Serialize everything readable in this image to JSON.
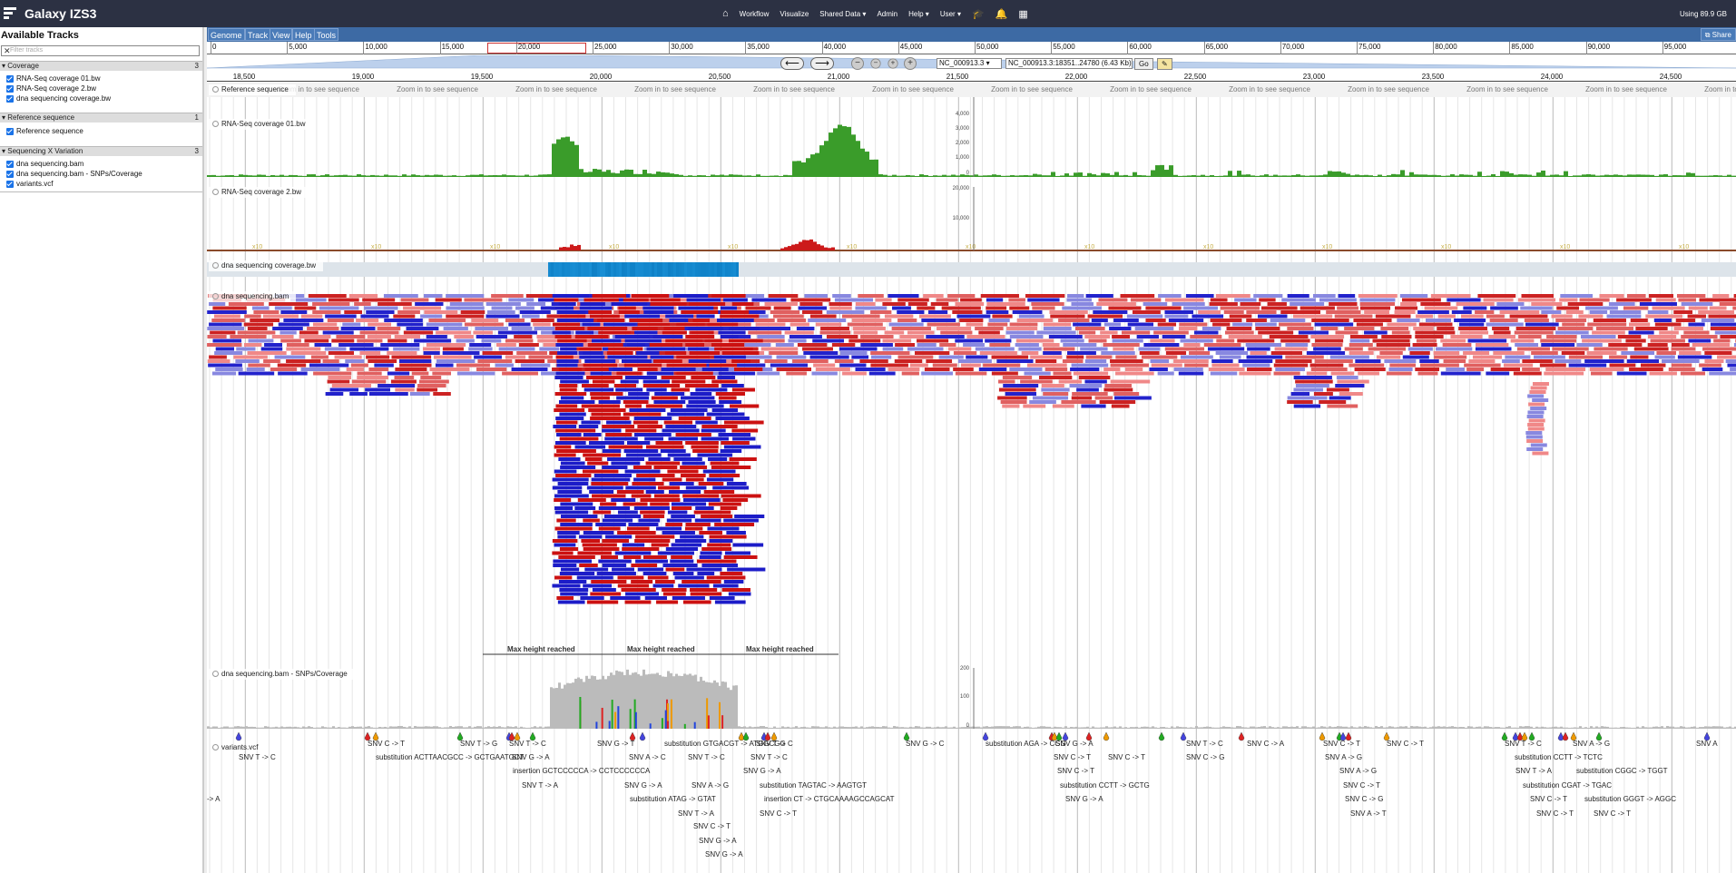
{
  "app": {
    "brand": "Galaxy IZS3",
    "nav": [
      "Workflow",
      "Visualize",
      "Shared Data ▾",
      "Admin",
      "Help ▾",
      "User ▾"
    ],
    "usage": "Using 89.9 GB",
    "icons": [
      "home-icon",
      "graduation-cap-icon",
      "bell-icon",
      "grid-apps-icon"
    ]
  },
  "left_panel": {
    "title": "Available Tracks",
    "filter_placeholder": "Filter tracks",
    "categories": [
      {
        "name": "Coverage",
        "count": "3",
        "tracks": [
          "RNA-Seq coverage 01.bw",
          "RNA-Seq coverage 2.bw",
          "dna sequencing coverage.bw"
        ]
      },
      {
        "name": "Reference sequence",
        "count": "1",
        "tracks": [
          "Reference sequence"
        ]
      },
      {
        "name": "Sequencing X Variation",
        "count": "3",
        "tracks": [
          "dna sequencing.bam",
          "dna sequencing.bam - SNPs/Coverage",
          "variants.vcf"
        ]
      }
    ]
  },
  "menubar": {
    "items": [
      "Genome",
      "Track",
      "View",
      "Help",
      "Tools"
    ],
    "share": "Share"
  },
  "overview": {
    "ticks": [
      "0",
      "5,000",
      "10,000",
      "15,000",
      "20,000",
      "25,000",
      "30,000",
      "35,000",
      "40,000",
      "45,000",
      "50,000",
      "55,000",
      "60,000",
      "65,000",
      "70,000",
      "75,000",
      "80,000",
      "85,000",
      "90,000",
      "95,000"
    ]
  },
  "navigation": {
    "ref_select": "NC_000913.3",
    "location": "NC_000913.3:18351..24780 (6.43 Kb)",
    "go_label": "Go"
  },
  "ruler": {
    "ticks": [
      "18,500",
      "19,000",
      "19,500",
      "20,000",
      "20,500",
      "21,000",
      "21,500",
      "22,000",
      "22,500",
      "23,000",
      "23,500",
      "24,000",
      "24,500"
    ]
  },
  "tracks": {
    "reference": {
      "label": "Reference sequence",
      "zoom_text": "Zoom in to see sequence"
    },
    "rnaseq1": {
      "label": "RNA-Seq coverage 01.bw",
      "yticks": [
        "4,000",
        "3,000",
        "2,000",
        "1,000",
        "0"
      ]
    },
    "rnaseq2": {
      "label": "RNA-Seq coverage 2.bw",
      "yticks": [
        "20,000",
        "10,000"
      ]
    },
    "dnacov": {
      "label": "dna sequencing coverage.bw"
    },
    "bam": {
      "label": "dna sequencing.bam",
      "max_height": "Max height reached"
    },
    "snpcov": {
      "label": "dna sequencing.bam - SNPs/Coverage",
      "yticks": [
        "200",
        "100",
        "0"
      ]
    },
    "vcf": {
      "label": "variants.vcf"
    }
  },
  "variants": [
    "SNV T -> C",
    "SNV C -> T",
    "substitution ACTTAACGCC -> GCTGAATGCT",
    "SNV T -> G",
    "SNV T -> C",
    "SNV G -> A",
    "insertion GCTCCCCCA -> CCTCCCCCCA",
    "SNV T -> A",
    "SNV G -> T",
    "substitution GTGACGT -> ATGGCGG",
    "SNV A -> C",
    "SNV T -> C",
    "SNV T -> C",
    "SNV T -> C",
    "SNV G -> A",
    "SNV A -> G",
    "SNV G -> A",
    "substitution ATAG -> GTAT",
    "substitution TAGTAC -> AAGTGT",
    "insertion CT -> CTGCAAAAGCCAGCAT",
    "SNV T -> A",
    "SNV C -> T",
    "SNV C -> T",
    "SNV G -> A",
    "SNV G -> A",
    "SNV G -> C",
    "substitution AGA -> CGG",
    "SNV G -> A",
    "SNV C -> T",
    "SNV C -> T",
    "SNV C -> T",
    "substitution CCTT -> GCTG",
    "SNV G -> A",
    "SNV T -> C",
    "SNV C -> G",
    "SNV C -> A",
    "SNV C -> T",
    "SNV A -> G",
    "SNV A -> G",
    "SNV C -> T",
    "SNV C -> G",
    "SNV A -> T",
    "SNV C -> T",
    "SNV T -> C",
    "SNV A -> G",
    "substitution CCTT -> TCTC",
    "SNV T -> A",
    "substitution CGGC -> TGGT",
    "substitution CGAT -> TGAC",
    "SNV C -> T",
    "substitution GGGT -> AGGC",
    "SNV C -> T",
    "SNV C -> T",
    "SNV A",
    "-> A"
  ],
  "colors": {
    "masthead": "#2c3143",
    "menubar": "#3d6aa4",
    "coverage_green": "#3a9c2a",
    "rnaseq2_red": "#cc1a1a",
    "read_forward": "#cc2222",
    "read_reverse": "#2222cc",
    "snp_gray": "#bbbbbb"
  }
}
